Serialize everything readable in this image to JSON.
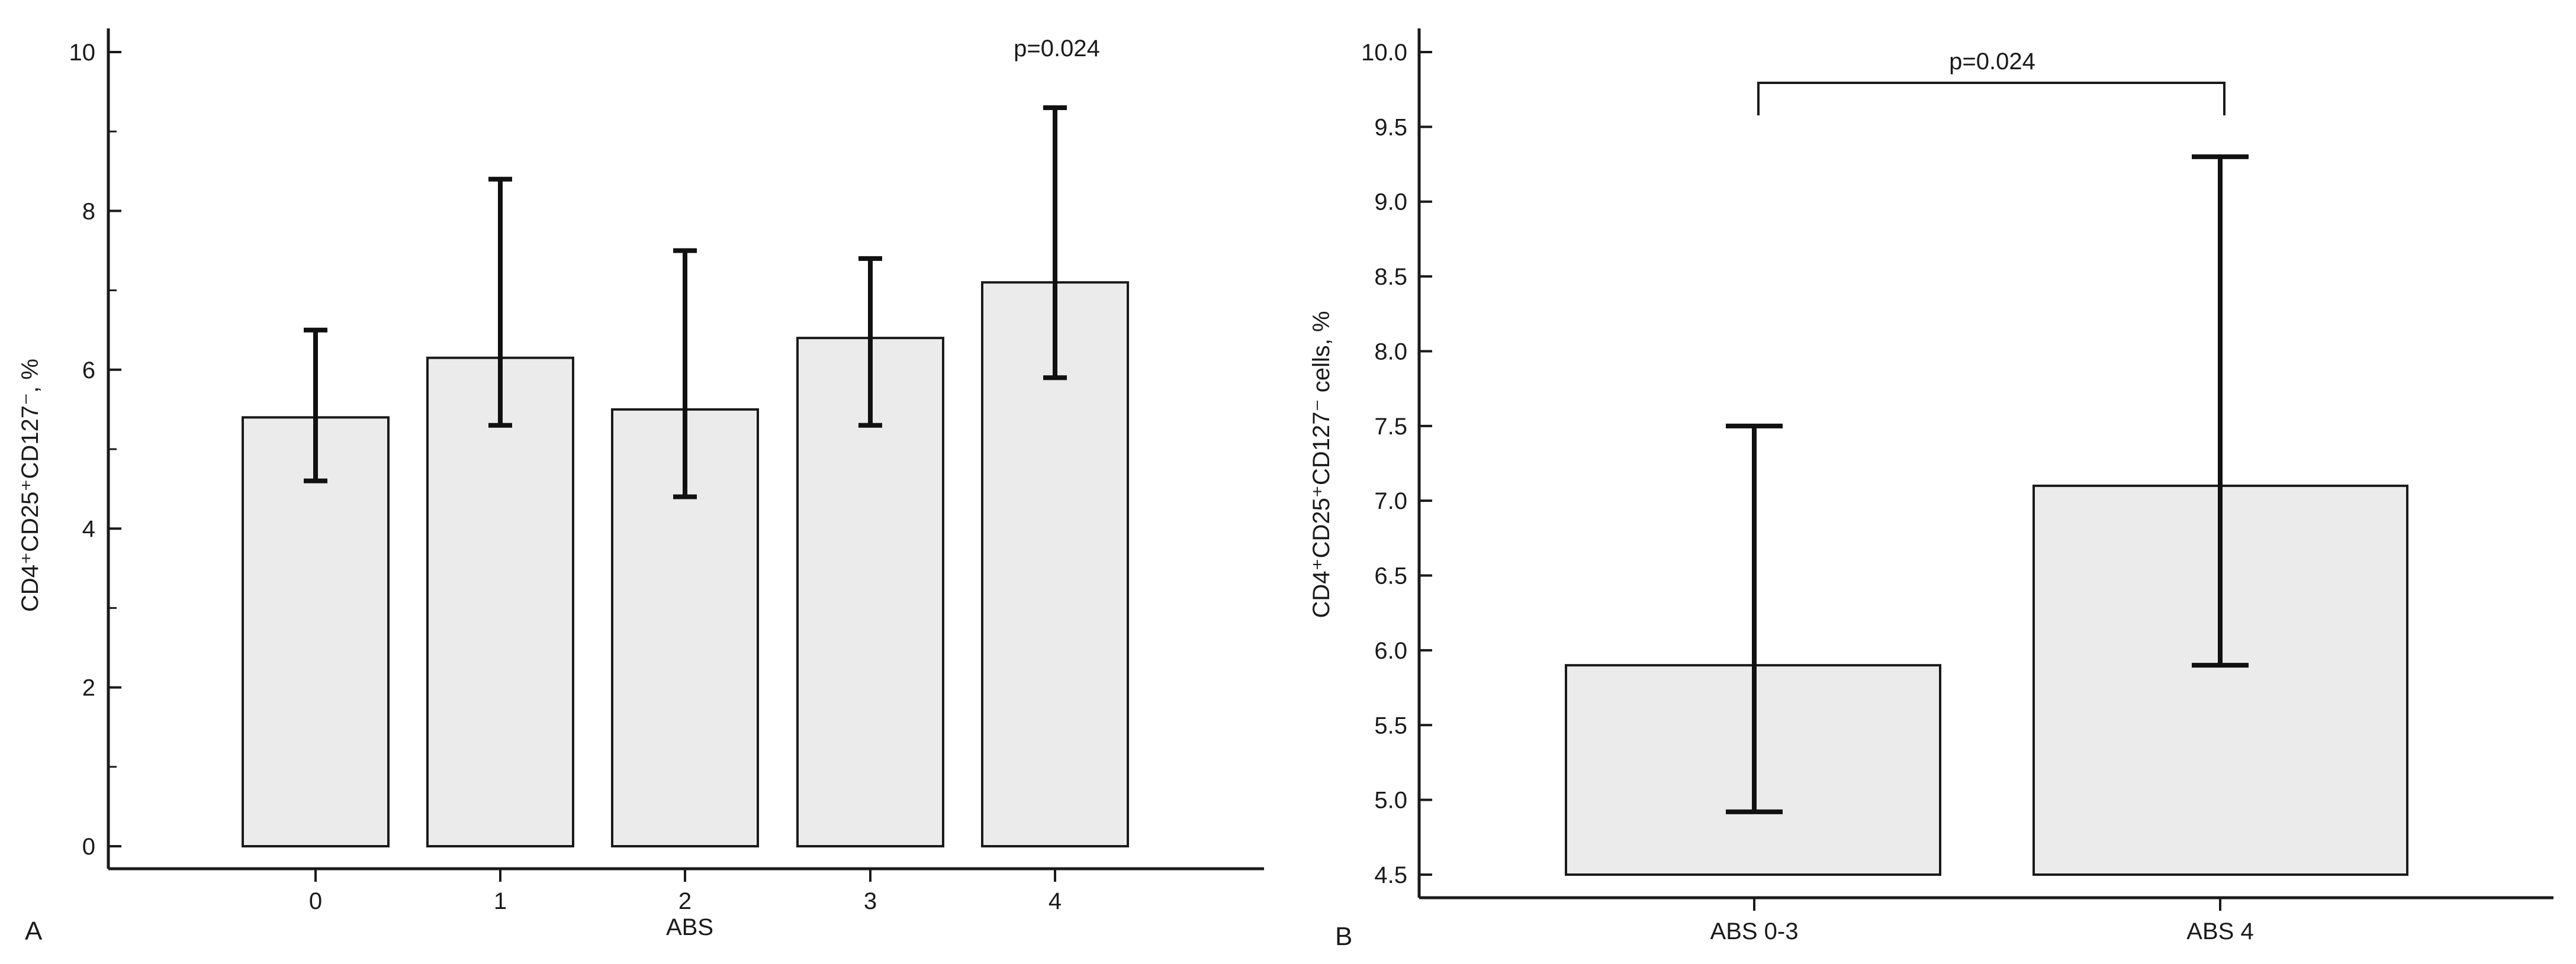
{
  "chart_data": [
    {
      "type": "bar",
      "panel_label": "A",
      "title": "",
      "xlabel": "ABS",
      "ylabel": "CD4⁺CD25⁺CD127⁻, %",
      "categories": [
        "0",
        "1",
        "2",
        "3",
        "4"
      ],
      "values": [
        5.4,
        6.15,
        5.5,
        6.4,
        7.1
      ],
      "error_low": [
        4.6,
        5.3,
        4.4,
        5.3,
        5.9
      ],
      "error_high": [
        6.5,
        8.4,
        7.5,
        7.4,
        9.3
      ],
      "ylim": [
        0,
        10
      ],
      "yticks": [
        "0",
        "2",
        "4",
        "6",
        "8",
        "10"
      ],
      "ytick_values": [
        0,
        2,
        4,
        6,
        8,
        10
      ],
      "annotation": "p=0.024",
      "grid": false
    },
    {
      "type": "bar",
      "panel_label": "B",
      "title": "",
      "xlabel": "",
      "ylabel": "CD4⁺CD25⁺CD127⁻ cells, %",
      "categories": [
        "ABS 0-3",
        "ABS 4"
      ],
      "values": [
        5.9,
        7.1
      ],
      "error_low": [
        4.92,
        5.9
      ],
      "error_high": [
        7.5,
        9.3
      ],
      "ylim": [
        4.5,
        10.0
      ],
      "baseline": 4.5,
      "yticks": [
        "4.5",
        "5.0",
        "5.5",
        "6.0",
        "6.5",
        "7.0",
        "7.5",
        "8.0",
        "8.5",
        "9.0",
        "9.5",
        "10.0"
      ],
      "ytick_values": [
        4.5,
        5.0,
        5.5,
        6.0,
        6.5,
        7.0,
        7.5,
        8.0,
        8.5,
        9.0,
        9.5,
        10.0
      ],
      "annotation": "p=0.024",
      "grid": false
    }
  ]
}
